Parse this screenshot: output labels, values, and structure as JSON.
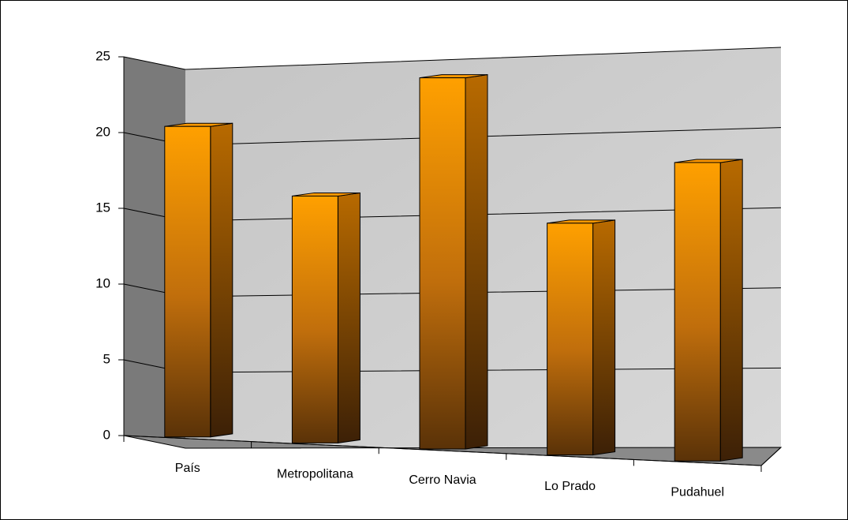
{
  "chart_data": {
    "type": "bar3d",
    "categories": [
      "País",
      "Metropolitana",
      "Cerro Navia",
      "Lo Prado",
      "Pudahuel"
    ],
    "values": [
      20.5,
      16.3,
      24.5,
      15.3,
      19.7
    ],
    "color": "#ff9900",
    "ylim": [
      0,
      25
    ],
    "yticks": [
      0,
      5,
      10,
      15,
      20,
      25
    ],
    "grid": true
  }
}
